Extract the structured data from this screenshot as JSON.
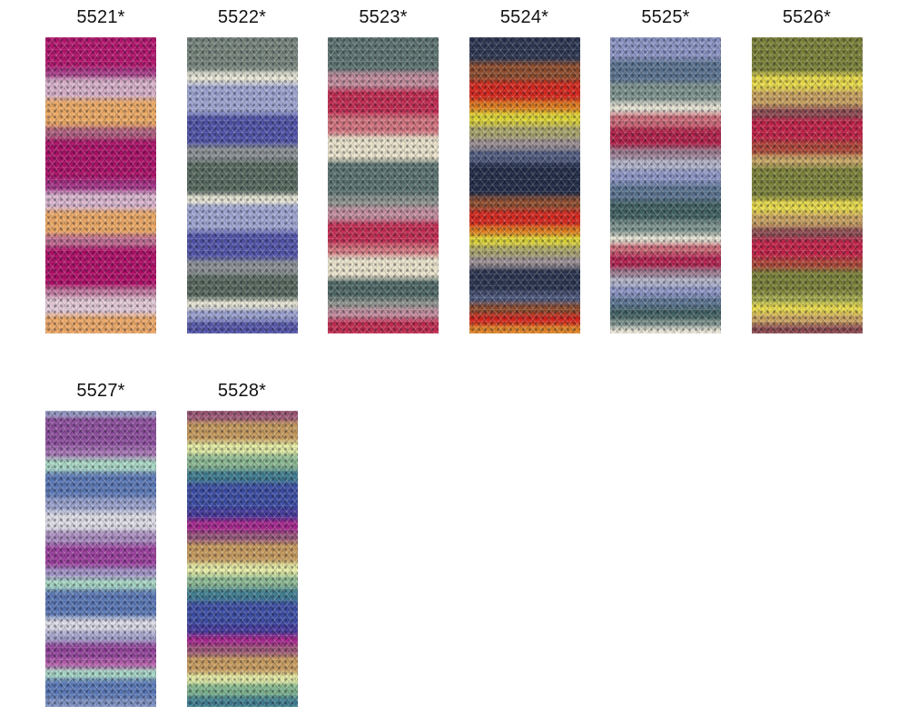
{
  "page": {
    "background": "#ffffff",
    "description_labels": [
      "5521*",
      "5522*",
      "5523*",
      "5524*",
      "5525*",
      "5526*",
      "5527*",
      "5528*"
    ]
  },
  "swatches": [
    {
      "code": "5521*",
      "row": 1,
      "stripes": [
        {
          "color": "#b5156e",
          "weight": 10
        },
        {
          "color": "#a83b88",
          "weight": 3
        },
        {
          "color": "#d9b2cb",
          "weight": 7
        },
        {
          "color": "#edaa64",
          "weight": 9
        },
        {
          "color": "#b06080",
          "weight": 4
        },
        {
          "color": "#ad1168",
          "weight": 13
        },
        {
          "color": "#a53287",
          "weight": 4
        },
        {
          "color": "#dbb7cf",
          "weight": 6
        },
        {
          "color": "#eda965",
          "weight": 8
        },
        {
          "color": "#c06d92",
          "weight": 4
        },
        {
          "color": "#b00f68",
          "weight": 13
        },
        {
          "color": "#c2789f",
          "weight": 3
        },
        {
          "color": "#e5cbd8",
          "weight": 6
        },
        {
          "color": "#eda867",
          "weight": 6
        }
      ]
    },
    {
      "code": "5522*",
      "row": 1,
      "stripes": [
        {
          "color": "#76857c",
          "weight": 11
        },
        {
          "color": "#eae9d8",
          "weight": 4
        },
        {
          "color": "#9ea6d2",
          "weight": 10
        },
        {
          "color": "#5053a8",
          "weight": 10
        },
        {
          "color": "#8b9094",
          "weight": 5
        },
        {
          "color": "#586a60",
          "weight": 11
        },
        {
          "color": "#ebead9",
          "weight": 3
        },
        {
          "color": "#9fa7d3",
          "weight": 9
        },
        {
          "color": "#5254aa",
          "weight": 9
        },
        {
          "color": "#8d9195",
          "weight": 5
        },
        {
          "color": "#57685e",
          "weight": 8
        },
        {
          "color": "#e9e8d7",
          "weight": 3
        },
        {
          "color": "#9aa2d0",
          "weight": 4
        },
        {
          "color": "#5355a9",
          "weight": 4
        }
      ]
    },
    {
      "code": "5523*",
      "row": 1,
      "stripes": [
        {
          "color": "#5e7471",
          "weight": 12
        },
        {
          "color": "#c28c9c",
          "weight": 6
        },
        {
          "color": "#c22b51",
          "weight": 9
        },
        {
          "color": "#d4747f",
          "weight": 7
        },
        {
          "color": "#ebe3cb",
          "weight": 9
        },
        {
          "color": "#5b7370",
          "weight": 12
        },
        {
          "color": "#8e948f",
          "weight": 4
        },
        {
          "color": "#c58fa0",
          "weight": 5
        },
        {
          "color": "#c32d52",
          "weight": 8
        },
        {
          "color": "#d57680",
          "weight": 4
        },
        {
          "color": "#ece5cd",
          "weight": 8
        },
        {
          "color": "#4f6865",
          "weight": 7
        },
        {
          "color": "#90958f",
          "weight": 3
        },
        {
          "color": "#c48ea0",
          "weight": 4
        },
        {
          "color": "#c22c51",
          "weight": 5
        }
      ]
    },
    {
      "code": "5524*",
      "row": 1,
      "stripes": [
        {
          "color": "#2d3752",
          "weight": 9
        },
        {
          "color": "#8e4c2c",
          "weight": 7
        },
        {
          "color": "#d6261c",
          "weight": 7
        },
        {
          "color": "#df7b1d",
          "weight": 4
        },
        {
          "color": "#ded534",
          "weight": 5
        },
        {
          "color": "#aaa56b",
          "weight": 5
        },
        {
          "color": "#9b8f94",
          "weight": 4
        },
        {
          "color": "#515c80",
          "weight": 5
        },
        {
          "color": "#232d48",
          "weight": 12
        },
        {
          "color": "#8f4d2e",
          "weight": 5
        },
        {
          "color": "#d7271d",
          "weight": 6
        },
        {
          "color": "#e07d1e",
          "weight": 3
        },
        {
          "color": "#dfd636",
          "weight": 4
        },
        {
          "color": "#a9a46a",
          "weight": 4
        },
        {
          "color": "#9c9095",
          "weight": 4
        },
        {
          "color": "#2b3550",
          "weight": 9
        },
        {
          "color": "#4f5a7e",
          "weight": 4
        },
        {
          "color": "#8d4b2c",
          "weight": 4
        },
        {
          "color": "#d5251b",
          "weight": 4
        },
        {
          "color": "#e08426",
          "weight": 3
        }
      ]
    },
    {
      "code": "5525*",
      "row": 1,
      "stripes": [
        {
          "color": "#8c95c5",
          "weight": 8
        },
        {
          "color": "#5a7390",
          "weight": 8
        },
        {
          "color": "#7f948e",
          "weight": 7
        },
        {
          "color": "#e7e4d5",
          "weight": 4
        },
        {
          "color": "#cd6b78",
          "weight": 5
        },
        {
          "color": "#b22149",
          "weight": 7
        },
        {
          "color": "#9d7c91",
          "weight": 4
        },
        {
          "color": "#b4b7cb",
          "weight": 4
        },
        {
          "color": "#8d96c6",
          "weight": 5
        },
        {
          "color": "#5b7491",
          "weight": 6
        },
        {
          "color": "#406061",
          "weight": 7
        },
        {
          "color": "#80958f",
          "weight": 5
        },
        {
          "color": "#e6e3d4",
          "weight": 3
        },
        {
          "color": "#cc6a77",
          "weight": 4
        },
        {
          "color": "#b32250",
          "weight": 5
        },
        {
          "color": "#9e7d92",
          "weight": 3
        },
        {
          "color": "#b5b8cc",
          "weight": 3
        },
        {
          "color": "#8e97c7",
          "weight": 4
        },
        {
          "color": "#5c7592",
          "weight": 4
        },
        {
          "color": "#416162",
          "weight": 4
        },
        {
          "color": "#81968f",
          "weight": 3
        },
        {
          "color": "#e8e5d6",
          "weight": 2
        }
      ]
    },
    {
      "code": "5526*",
      "row": 1,
      "stripes": [
        {
          "color": "#7b8238",
          "weight": 13
        },
        {
          "color": "#e8da48",
          "weight": 6
        },
        {
          "color": "#c8a15f",
          "weight": 6
        },
        {
          "color": "#8c4a51",
          "weight": 4
        },
        {
          "color": "#c22147",
          "weight": 8
        },
        {
          "color": "#ae4437",
          "weight": 5
        },
        {
          "color": "#c9a765",
          "weight": 4
        },
        {
          "color": "#7c8339",
          "weight": 12
        },
        {
          "color": "#e9db4a",
          "weight": 5
        },
        {
          "color": "#c9a260",
          "weight": 5
        },
        {
          "color": "#8d4b52",
          "weight": 4
        },
        {
          "color": "#c32248",
          "weight": 7
        },
        {
          "color": "#af4538",
          "weight": 4
        },
        {
          "color": "#7a8137",
          "weight": 9
        },
        {
          "color": "#a3a94e",
          "weight": 3
        },
        {
          "color": "#eadc4c",
          "weight": 4
        },
        {
          "color": "#caa361",
          "weight": 4
        },
        {
          "color": "#8b4a50",
          "weight": 3
        }
      ]
    },
    {
      "code": "5527*",
      "row": 2,
      "stripes": [
        {
          "color": "#9aa0c8",
          "weight": 2
        },
        {
          "color": "#8e4f9e",
          "weight": 11
        },
        {
          "color": "#a775b5",
          "weight": 4
        },
        {
          "color": "#abdac7",
          "weight": 5
        },
        {
          "color": "#5b79b7",
          "weight": 9
        },
        {
          "color": "#9aa3ce",
          "weight": 5
        },
        {
          "color": "#e0dfe9",
          "weight": 7
        },
        {
          "color": "#aa8cc0",
          "weight": 5
        },
        {
          "color": "#9c3f9e",
          "weight": 8
        },
        {
          "color": "#a495c8",
          "weight": 4
        },
        {
          "color": "#a9d9c5",
          "weight": 4
        },
        {
          "color": "#5a78b6",
          "weight": 10
        },
        {
          "color": "#dcdce7",
          "weight": 5
        },
        {
          "color": "#a8a5cf",
          "weight": 4
        },
        {
          "color": "#93449b",
          "weight": 6
        },
        {
          "color": "#b761ae",
          "weight": 3
        },
        {
          "color": "#aadac8",
          "weight": 4
        },
        {
          "color": "#5b7ab8",
          "weight": 7
        },
        {
          "color": "#8093c4",
          "weight": 3
        }
      ]
    },
    {
      "code": "5528*",
      "row": 2,
      "stripes": [
        {
          "color": "#9d5876",
          "weight": 4
        },
        {
          "color": "#c69a5d",
          "weight": 8
        },
        {
          "color": "#e4eca3",
          "weight": 5
        },
        {
          "color": "#8bb992",
          "weight": 6
        },
        {
          "color": "#3e7c8f",
          "weight": 5
        },
        {
          "color": "#3c4da4",
          "weight": 10
        },
        {
          "color": "#45399b",
          "weight": 4
        },
        {
          "color": "#a5268d",
          "weight": 5
        },
        {
          "color": "#96567a",
          "weight": 4
        },
        {
          "color": "#c79b5e",
          "weight": 8
        },
        {
          "color": "#e5eda5",
          "weight": 5
        },
        {
          "color": "#8cba93",
          "weight": 5
        },
        {
          "color": "#3f7d90",
          "weight": 5
        },
        {
          "color": "#3d4ea5",
          "weight": 9
        },
        {
          "color": "#463a9c",
          "weight": 4
        },
        {
          "color": "#a6278e",
          "weight": 4
        },
        {
          "color": "#9d5877",
          "weight": 4
        },
        {
          "color": "#c89c5f",
          "weight": 7
        },
        {
          "color": "#e6eea6",
          "weight": 4
        },
        {
          "color": "#7fb58d",
          "weight": 5
        },
        {
          "color": "#3f7e91",
          "weight": 4
        }
      ]
    }
  ]
}
